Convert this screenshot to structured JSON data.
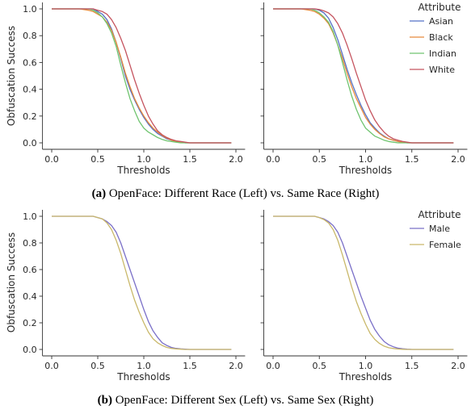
{
  "chart_data": [
    {
      "type": "line",
      "panel": "a-left",
      "xlabel": "Thresholds",
      "ylabel": "Obfuscation Success",
      "xlim": [
        0.0,
        2.0
      ],
      "ylim": [
        0.0,
        1.0
      ],
      "xticks": [
        0.0,
        0.5,
        1.0,
        1.5,
        2.0
      ],
      "yticks": [
        0.0,
        0.2,
        0.4,
        0.6,
        0.8,
        1.0
      ],
      "x": [
        0.0,
        0.1,
        0.2,
        0.3,
        0.4,
        0.45,
        0.5,
        0.55,
        0.6,
        0.65,
        0.7,
        0.75,
        0.8,
        0.85,
        0.9,
        0.95,
        1.0,
        1.05,
        1.1,
        1.15,
        1.2,
        1.25,
        1.3,
        1.35,
        1.4,
        1.45,
        1.5,
        1.55,
        1.6,
        1.7,
        1.8,
        1.9,
        1.95
      ],
      "series": [
        {
          "name": "Asian",
          "color": "#5470c6",
          "values": [
            1.0,
            1.0,
            1.0,
            1.0,
            1.0,
            1.0,
            0.98,
            0.96,
            0.92,
            0.85,
            0.75,
            0.63,
            0.5,
            0.4,
            0.32,
            0.25,
            0.19,
            0.14,
            0.1,
            0.07,
            0.05,
            0.03,
            0.02,
            0.01,
            0.005,
            0,
            0,
            0,
            0,
            0,
            0,
            0,
            0
          ]
        },
        {
          "name": "Black",
          "color": "#e88a3c",
          "values": [
            1.0,
            1.0,
            1.0,
            1.0,
            0.99,
            0.98,
            0.96,
            0.94,
            0.9,
            0.84,
            0.75,
            0.64,
            0.52,
            0.42,
            0.33,
            0.26,
            0.2,
            0.15,
            0.11,
            0.08,
            0.055,
            0.035,
            0.02,
            0.01,
            0.005,
            0,
            0,
            0,
            0,
            0,
            0,
            0,
            0
          ]
        },
        {
          "name": "Indian",
          "color": "#6fc46f",
          "values": [
            1.0,
            1.0,
            1.0,
            1.0,
            1.0,
            0.99,
            0.97,
            0.94,
            0.89,
            0.82,
            0.72,
            0.58,
            0.45,
            0.33,
            0.24,
            0.16,
            0.11,
            0.08,
            0.06,
            0.04,
            0.025,
            0.015,
            0.01,
            0.005,
            0,
            0,
            0,
            0,
            0,
            0,
            0,
            0,
            0
          ]
        },
        {
          "name": "White",
          "color": "#c5545f",
          "values": [
            1.0,
            1.0,
            1.0,
            1.0,
            1.0,
            1.0,
            0.99,
            0.98,
            0.96,
            0.92,
            0.86,
            0.78,
            0.69,
            0.58,
            0.47,
            0.37,
            0.28,
            0.2,
            0.14,
            0.09,
            0.06,
            0.04,
            0.025,
            0.015,
            0.01,
            0.005,
            0,
            0,
            0,
            0,
            0,
            0,
            0
          ]
        }
      ],
      "legend": "none"
    },
    {
      "type": "line",
      "panel": "a-right",
      "xlabel": "Thresholds",
      "ylabel": "",
      "xlim": [
        0.0,
        2.0
      ],
      "ylim": [
        0.0,
        1.0
      ],
      "xticks": [
        0.0,
        0.5,
        1.0,
        1.5,
        2.0
      ],
      "x": [
        0.0,
        0.1,
        0.2,
        0.3,
        0.4,
        0.45,
        0.5,
        0.55,
        0.6,
        0.65,
        0.7,
        0.75,
        0.8,
        0.85,
        0.9,
        0.95,
        1.0,
        1.05,
        1.1,
        1.15,
        1.2,
        1.25,
        1.3,
        1.35,
        1.4,
        1.45,
        1.5,
        1.55,
        1.6,
        1.7,
        1.8,
        1.9,
        1.95
      ],
      "series": [
        {
          "name": "Asian",
          "color": "#5470c6",
          "values": [
            1.0,
            1.0,
            1.0,
            1.0,
            1.0,
            1.0,
            0.99,
            0.97,
            0.93,
            0.86,
            0.77,
            0.66,
            0.55,
            0.45,
            0.36,
            0.28,
            0.21,
            0.15,
            0.11,
            0.075,
            0.05,
            0.03,
            0.02,
            0.01,
            0.005,
            0,
            0,
            0,
            0,
            0,
            0,
            0,
            0
          ]
        },
        {
          "name": "Black",
          "color": "#e88a3c",
          "values": [
            1.0,
            1.0,
            1.0,
            1.0,
            0.99,
            0.98,
            0.96,
            0.93,
            0.89,
            0.82,
            0.73,
            0.63,
            0.52,
            0.42,
            0.33,
            0.26,
            0.19,
            0.14,
            0.1,
            0.07,
            0.045,
            0.03,
            0.02,
            0.01,
            0.005,
            0,
            0,
            0,
            0,
            0,
            0,
            0,
            0
          ]
        },
        {
          "name": "Indian",
          "color": "#6fc46f",
          "values": [
            1.0,
            1.0,
            1.0,
            1.0,
            1.0,
            0.99,
            0.97,
            0.94,
            0.9,
            0.83,
            0.73,
            0.6,
            0.47,
            0.35,
            0.25,
            0.17,
            0.11,
            0.08,
            0.05,
            0.035,
            0.02,
            0.01,
            0.005,
            0,
            0,
            0,
            0,
            0,
            0,
            0,
            0,
            0,
            0
          ]
        },
        {
          "name": "White",
          "color": "#c5545f",
          "values": [
            1.0,
            1.0,
            1.0,
            1.0,
            1.0,
            1.0,
            0.995,
            0.985,
            0.97,
            0.94,
            0.89,
            0.82,
            0.73,
            0.63,
            0.52,
            0.42,
            0.32,
            0.24,
            0.17,
            0.12,
            0.08,
            0.05,
            0.03,
            0.02,
            0.01,
            0.005,
            0,
            0,
            0,
            0,
            0,
            0,
            0
          ]
        }
      ],
      "legend": "upper-right",
      "legend_title": "Attribute"
    },
    {
      "type": "line",
      "panel": "b-left",
      "xlabel": "Thresholds",
      "ylabel": "Obfuscation Success",
      "xlim": [
        0.0,
        2.0
      ],
      "ylim": [
        0.0,
        1.0
      ],
      "xticks": [
        0.0,
        0.5,
        1.0,
        1.5,
        2.0
      ],
      "yticks": [
        0.0,
        0.2,
        0.4,
        0.6,
        0.8,
        1.0
      ],
      "x": [
        0.0,
        0.1,
        0.2,
        0.3,
        0.4,
        0.45,
        0.5,
        0.55,
        0.6,
        0.65,
        0.7,
        0.75,
        0.8,
        0.85,
        0.9,
        0.95,
        1.0,
        1.05,
        1.1,
        1.15,
        1.2,
        1.25,
        1.3,
        1.35,
        1.4,
        1.45,
        1.5,
        1.55,
        1.6,
        1.7,
        1.8,
        1.9,
        1.95
      ],
      "series": [
        {
          "name": "Male",
          "color": "#7b70c8",
          "values": [
            1.0,
            1.0,
            1.0,
            1.0,
            1.0,
            1.0,
            0.99,
            0.98,
            0.96,
            0.93,
            0.88,
            0.8,
            0.7,
            0.6,
            0.5,
            0.4,
            0.3,
            0.21,
            0.14,
            0.09,
            0.05,
            0.03,
            0.015,
            0.008,
            0.004,
            0.002,
            0,
            0,
            0,
            0,
            0,
            0,
            0
          ]
        },
        {
          "name": "Female",
          "color": "#c9b86a",
          "values": [
            1.0,
            1.0,
            1.0,
            1.0,
            1.0,
            1.0,
            0.99,
            0.98,
            0.95,
            0.9,
            0.82,
            0.72,
            0.6,
            0.48,
            0.37,
            0.28,
            0.2,
            0.13,
            0.08,
            0.05,
            0.03,
            0.015,
            0.008,
            0.004,
            0.002,
            0,
            0,
            0,
            0,
            0,
            0,
            0,
            0
          ]
        }
      ],
      "legend": "none"
    },
    {
      "type": "line",
      "panel": "b-right",
      "xlabel": "Thresholds",
      "ylabel": "",
      "xlim": [
        0.0,
        2.0
      ],
      "ylim": [
        0.0,
        1.0
      ],
      "xticks": [
        0.0,
        0.5,
        1.0,
        1.5,
        2.0
      ],
      "x": [
        0.0,
        0.1,
        0.2,
        0.3,
        0.4,
        0.45,
        0.5,
        0.55,
        0.6,
        0.65,
        0.7,
        0.75,
        0.8,
        0.85,
        0.9,
        0.95,
        1.0,
        1.05,
        1.1,
        1.15,
        1.2,
        1.25,
        1.3,
        1.35,
        1.4,
        1.45,
        1.5,
        1.55,
        1.6,
        1.7,
        1.8,
        1.9,
        1.95
      ],
      "series": [
        {
          "name": "Male",
          "color": "#7b70c8",
          "values": [
            1.0,
            1.0,
            1.0,
            1.0,
            1.0,
            1.0,
            0.99,
            0.98,
            0.96,
            0.93,
            0.88,
            0.8,
            0.7,
            0.6,
            0.5,
            0.4,
            0.31,
            0.22,
            0.15,
            0.1,
            0.06,
            0.035,
            0.02,
            0.01,
            0.005,
            0.002,
            0,
            0,
            0,
            0,
            0,
            0,
            0
          ]
        },
        {
          "name": "Female",
          "color": "#c9b86a",
          "values": [
            1.0,
            1.0,
            1.0,
            1.0,
            1.0,
            1.0,
            0.99,
            0.975,
            0.95,
            0.9,
            0.82,
            0.71,
            0.59,
            0.47,
            0.36,
            0.27,
            0.19,
            0.12,
            0.075,
            0.045,
            0.025,
            0.013,
            0.007,
            0.003,
            0.001,
            0,
            0,
            0,
            0,
            0,
            0,
            0,
            0
          ]
        }
      ],
      "legend": "upper-right",
      "legend_title": "Attribute"
    }
  ],
  "captions": {
    "a_label": "(a)",
    "a_text": "OpenFace: Different Race (Left) vs. Same Race (Right)",
    "b_label": "(b)",
    "b_text": "OpenFace: Different Sex (Left) vs. Same Sex (Right)"
  }
}
